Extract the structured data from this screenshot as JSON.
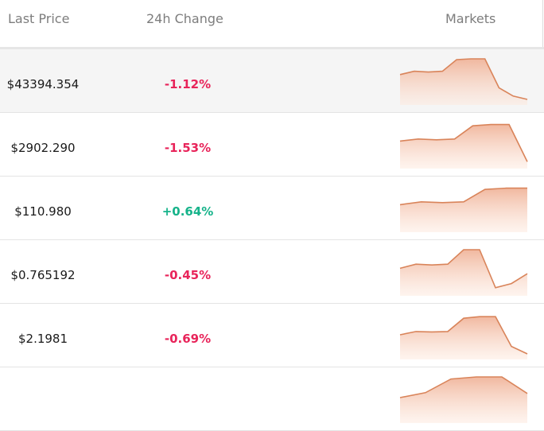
{
  "header": {
    "last_price": "Last Price",
    "change_24h": "24h Change",
    "markets": "Markets"
  },
  "colors": {
    "negative": "#e8245a",
    "positive": "#16b38a",
    "sparkline_stroke": "#d9845a",
    "sparkline_fill": "#f0b49a"
  },
  "rows": [
    {
      "price": "$43394.354",
      "change": "-1.12%",
      "direction": "negative",
      "trend": [
        0.62,
        0.7,
        0.68,
        0.7,
        0.98,
        1.0,
        1.0,
        0.3,
        0.1,
        0.02
      ]
    },
    {
      "price": "$2902.290",
      "change": "-1.53%",
      "direction": "negative",
      "trend": [
        0.55,
        0.6,
        0.58,
        0.6,
        0.92,
        0.95,
        0.95,
        0.05
      ]
    },
    {
      "price": "$110.980",
      "change": "+0.64%",
      "direction": "positive",
      "trend": [
        0.55,
        0.62,
        0.6,
        0.62,
        0.92,
        0.95,
        0.95
      ]
    },
    {
      "price": "$0.765192",
      "change": "-0.45%",
      "direction": "negative",
      "trend": [
        0.55,
        0.65,
        0.63,
        0.65,
        1.0,
        1.0,
        0.08,
        0.18,
        0.42
      ]
    },
    {
      "price": "$2.1981",
      "change": "-0.69%",
      "direction": "negative",
      "trend": [
        0.48,
        0.56,
        0.55,
        0.56,
        0.88,
        0.92,
        0.92,
        0.2,
        0.02
      ]
    },
    {
      "price": "",
      "change": "",
      "direction": "negative",
      "trend": [
        0.5,
        0.62,
        0.95,
        1.0,
        1.0,
        0.6
      ]
    }
  ]
}
